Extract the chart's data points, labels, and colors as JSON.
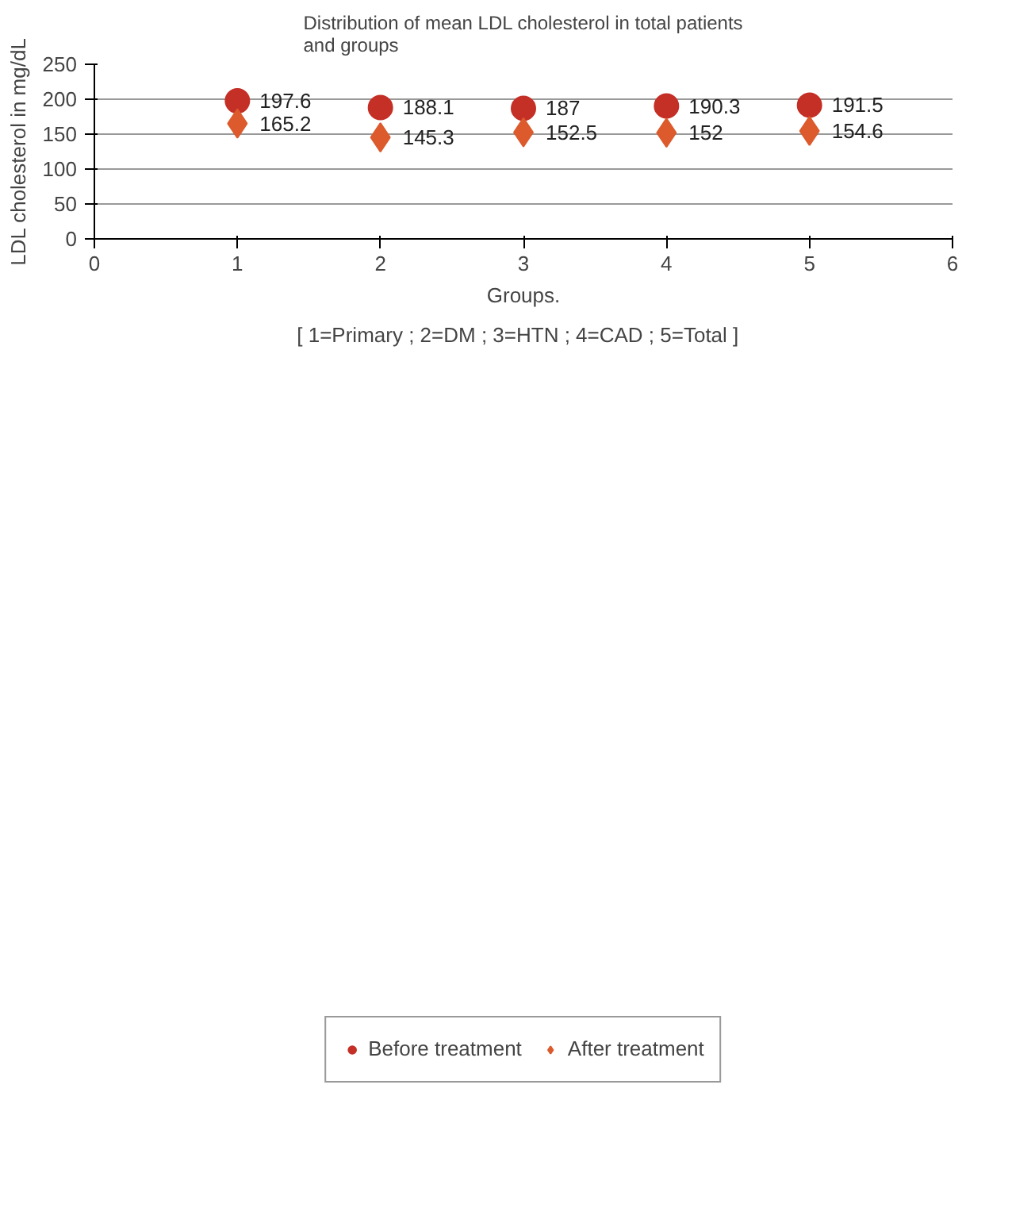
{
  "chart_data": {
    "type": "scatter",
    "title": "Distribution of mean LDL cholesterol in total patients and groups",
    "xlabel": "Groups.",
    "ylabel": "LDL cholesterol in mg/dL",
    "annotations": [
      "[ 1=Primary ;  2=DM ; 3=HTN  ; 4=CAD ; 5=Total ]"
    ],
    "x": [
      1,
      2,
      3,
      4,
      5
    ],
    "series": [
      {
        "name": "Before treatment",
        "color": "#c42f26",
        "marker": "circle",
        "values": [
          197.6,
          188.1,
          187,
          190.3,
          191.5
        ]
      },
      {
        "name": "After treatment",
        "color": "#dc5a2c",
        "marker": "diamond",
        "values": [
          165.2,
          145.3,
          152.5,
          152,
          154.6
        ]
      }
    ],
    "xlim": [
      0,
      6
    ],
    "xticks": [
      0,
      1,
      2,
      3,
      4,
      5,
      6
    ],
    "ylim": [
      0,
      250
    ],
    "yticks": [
      0,
      50,
      100,
      150,
      200,
      250
    ],
    "grid": "y",
    "legend": "bottom",
    "data_labels": true
  }
}
